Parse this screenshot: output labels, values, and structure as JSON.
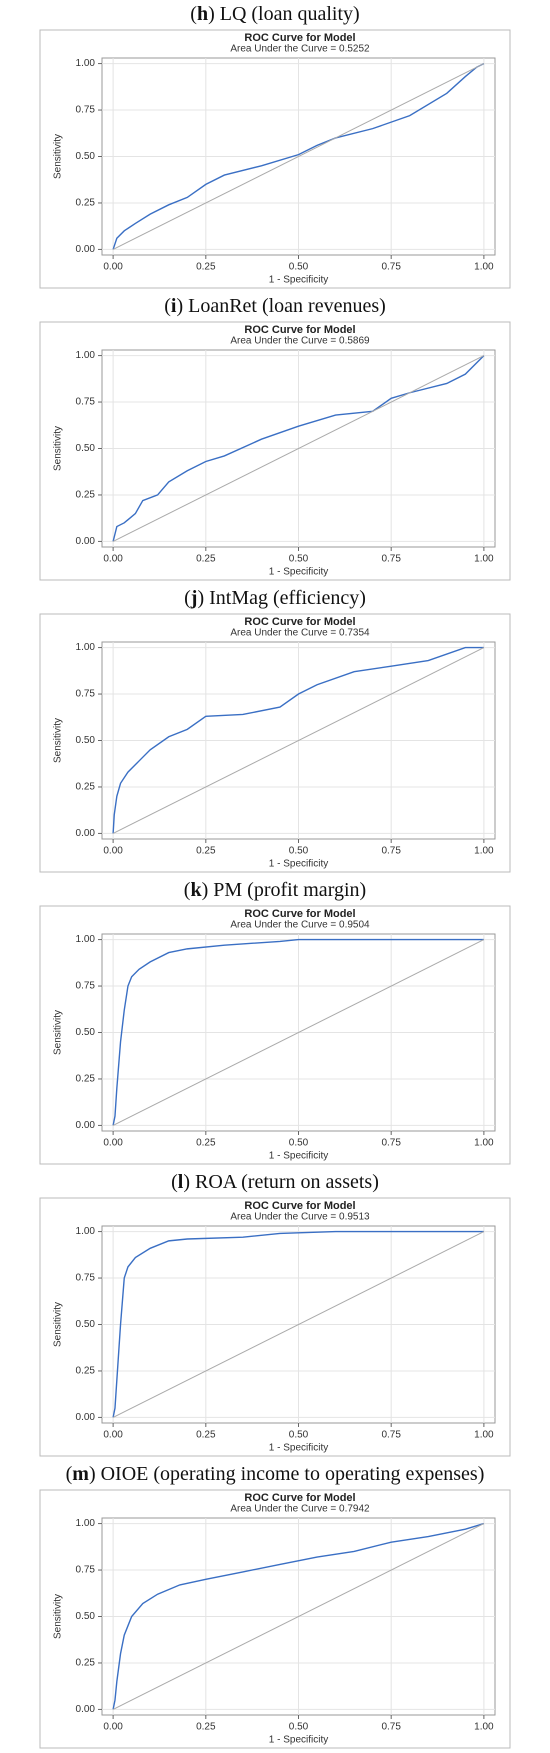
{
  "chart_data": [
    {
      "type": "line",
      "caption": [
        "(",
        "h",
        ") LQ (loan quality)"
      ],
      "title": "ROC Curve for Model",
      "subtitle": "Area Under the Curve = 0.5252",
      "xlabel": "1 - Specificity",
      "ylabel": "Sensitivity",
      "xlim": [
        -0.03,
        1.03
      ],
      "ylim": [
        -0.03,
        1.03
      ],
      "grid": true,
      "xticks": [
        {
          "value": 0,
          "label": "0.00"
        },
        {
          "value": 0.25,
          "label": "0.25"
        },
        {
          "value": 0.5,
          "label": "0.50"
        },
        {
          "value": 0.75,
          "label": "0.75"
        },
        {
          "value": 1,
          "label": "1.00"
        }
      ],
      "yticks": [
        {
          "value": 0,
          "label": "0.00"
        },
        {
          "value": 0.25,
          "label": "0.25"
        },
        {
          "value": 0.5,
          "label": "0.50"
        },
        {
          "value": 0.75,
          "label": "0.75"
        },
        {
          "value": 1,
          "label": "1.00"
        }
      ],
      "series": [
        {
          "color": "#3a6fc4",
          "x": [
            0,
            0.01,
            0.03,
            0.06,
            0.1,
            0.15,
            0.2,
            0.25,
            0.3,
            0.4,
            0.5,
            0.55,
            0.6,
            0.7,
            0.8,
            0.9,
            0.95,
            0.98,
            1
          ],
          "values": [
            0,
            0.06,
            0.1,
            0.14,
            0.19,
            0.24,
            0.28,
            0.35,
            0.4,
            0.45,
            0.51,
            0.56,
            0.6,
            0.65,
            0.72,
            0.84,
            0.93,
            0.98,
            1
          ]
        },
        {
          "color": "#aaaaaa",
          "x": [
            0,
            1
          ],
          "values": [
            0,
            1
          ]
        }
      ]
    },
    {
      "type": "line",
      "caption": [
        "(",
        "i",
        ") LoanRet (loan revenues)"
      ],
      "title": "ROC Curve for Model",
      "subtitle": "Area Under the Curve = 0.5869",
      "xlabel": "1 - Specificity",
      "ylabel": "Sensitivity",
      "xlim": [
        -0.03,
        1.03
      ],
      "ylim": [
        -0.03,
        1.03
      ],
      "grid": true,
      "xticks": [
        {
          "value": 0,
          "label": "0.00"
        },
        {
          "value": 0.25,
          "label": "0.25"
        },
        {
          "value": 0.5,
          "label": "0.50"
        },
        {
          "value": 0.75,
          "label": "0.75"
        },
        {
          "value": 1,
          "label": "1.00"
        }
      ],
      "yticks": [
        {
          "value": 0,
          "label": "0.00"
        },
        {
          "value": 0.25,
          "label": "0.25"
        },
        {
          "value": 0.5,
          "label": "0.50"
        },
        {
          "value": 0.75,
          "label": "0.75"
        },
        {
          "value": 1,
          "label": "1.00"
        }
      ],
      "series": [
        {
          "color": "#3a6fc4",
          "x": [
            0,
            0.01,
            0.03,
            0.06,
            0.08,
            0.12,
            0.15,
            0.2,
            0.25,
            0.3,
            0.4,
            0.5,
            0.6,
            0.7,
            0.75,
            0.8,
            0.9,
            0.95,
            1
          ],
          "values": [
            0,
            0.08,
            0.1,
            0.15,
            0.22,
            0.25,
            0.32,
            0.38,
            0.43,
            0.46,
            0.55,
            0.62,
            0.68,
            0.7,
            0.77,
            0.8,
            0.85,
            0.9,
            1
          ]
        },
        {
          "color": "#aaaaaa",
          "x": [
            0,
            1
          ],
          "values": [
            0,
            1
          ]
        }
      ]
    },
    {
      "type": "line",
      "caption": [
        "(",
        "j",
        ") IntMag (efficiency)"
      ],
      "title": "ROC Curve for Model",
      "subtitle": "Area Under the Curve = 0.7354",
      "xlabel": "1 - Specificity",
      "ylabel": "Sensitivity",
      "xlim": [
        -0.03,
        1.03
      ],
      "ylim": [
        -0.03,
        1.03
      ],
      "grid": true,
      "xticks": [
        {
          "value": 0,
          "label": "0.00"
        },
        {
          "value": 0.25,
          "label": "0.25"
        },
        {
          "value": 0.5,
          "label": "0.50"
        },
        {
          "value": 0.75,
          "label": "0.75"
        },
        {
          "value": 1,
          "label": "1.00"
        }
      ],
      "yticks": [
        {
          "value": 0,
          "label": "0.00"
        },
        {
          "value": 0.25,
          "label": "0.25"
        },
        {
          "value": 0.5,
          "label": "0.50"
        },
        {
          "value": 0.75,
          "label": "0.75"
        },
        {
          "value": 1,
          "label": "1.00"
        }
      ],
      "series": [
        {
          "color": "#3a6fc4",
          "x": [
            0,
            0.003,
            0.01,
            0.02,
            0.04,
            0.07,
            0.1,
            0.15,
            0.2,
            0.25,
            0.35,
            0.45,
            0.5,
            0.55,
            0.65,
            0.75,
            0.85,
            0.95,
            1
          ],
          "values": [
            0,
            0.1,
            0.2,
            0.27,
            0.33,
            0.39,
            0.45,
            0.52,
            0.56,
            0.63,
            0.64,
            0.68,
            0.75,
            0.8,
            0.87,
            0.9,
            0.93,
            1,
            1
          ]
        },
        {
          "color": "#aaaaaa",
          "x": [
            0,
            1
          ],
          "values": [
            0,
            1
          ]
        }
      ]
    },
    {
      "type": "line",
      "caption": [
        "(",
        "k",
        ") PM (profit margin)"
      ],
      "title": "ROC Curve for Model",
      "subtitle": "Area Under the Curve = 0.9504",
      "xlabel": "1 - Specificity",
      "ylabel": "Sensitivity",
      "xlim": [
        -0.03,
        1.03
      ],
      "ylim": [
        -0.03,
        1.03
      ],
      "grid": true,
      "xticks": [
        {
          "value": 0,
          "label": "0.00"
        },
        {
          "value": 0.25,
          "label": "0.25"
        },
        {
          "value": 0.5,
          "label": "0.50"
        },
        {
          "value": 0.75,
          "label": "0.75"
        },
        {
          "value": 1,
          "label": "1.00"
        }
      ],
      "yticks": [
        {
          "value": 0,
          "label": "0.00"
        },
        {
          "value": 0.25,
          "label": "0.25"
        },
        {
          "value": 0.5,
          "label": "0.50"
        },
        {
          "value": 0.75,
          "label": "0.75"
        },
        {
          "value": 1,
          "label": "1.00"
        }
      ],
      "series": [
        {
          "color": "#3a6fc4",
          "x": [
            0,
            0.005,
            0.01,
            0.02,
            0.03,
            0.04,
            0.05,
            0.07,
            0.1,
            0.15,
            0.2,
            0.3,
            0.45,
            0.5,
            1
          ],
          "values": [
            0,
            0.05,
            0.2,
            0.45,
            0.62,
            0.75,
            0.8,
            0.84,
            0.88,
            0.93,
            0.95,
            0.97,
            0.99,
            1,
            1
          ]
        },
        {
          "color": "#aaaaaa",
          "x": [
            0,
            1
          ],
          "values": [
            0,
            1
          ]
        }
      ]
    },
    {
      "type": "line",
      "caption": [
        "(",
        "l",
        ") ROA (return on assets)"
      ],
      "title": "ROC Curve for Model",
      "subtitle": "Area Under the Curve = 0.9513",
      "xlabel": "1 - Specificity",
      "ylabel": "Sensitivity",
      "xlim": [
        -0.03,
        1.03
      ],
      "ylim": [
        -0.03,
        1.03
      ],
      "grid": true,
      "xticks": [
        {
          "value": 0,
          "label": "0.00"
        },
        {
          "value": 0.25,
          "label": "0.25"
        },
        {
          "value": 0.5,
          "label": "0.50"
        },
        {
          "value": 0.75,
          "label": "0.75"
        },
        {
          "value": 1,
          "label": "1.00"
        }
      ],
      "yticks": [
        {
          "value": 0,
          "label": "0.00"
        },
        {
          "value": 0.25,
          "label": "0.25"
        },
        {
          "value": 0.5,
          "label": "0.50"
        },
        {
          "value": 0.75,
          "label": "0.75"
        },
        {
          "value": 1,
          "label": "1.00"
        }
      ],
      "series": [
        {
          "color": "#3a6fc4",
          "x": [
            0,
            0.005,
            0.01,
            0.02,
            0.03,
            0.04,
            0.06,
            0.1,
            0.15,
            0.2,
            0.35,
            0.45,
            0.6,
            1
          ],
          "values": [
            0,
            0.05,
            0.2,
            0.5,
            0.75,
            0.81,
            0.86,
            0.91,
            0.95,
            0.96,
            0.97,
            0.99,
            1,
            1
          ]
        },
        {
          "color": "#aaaaaa",
          "x": [
            0,
            1
          ],
          "values": [
            0,
            1
          ]
        }
      ]
    },
    {
      "type": "line",
      "caption": [
        "(",
        "m",
        ") OIOE (operating income to operating expenses)"
      ],
      "title": "ROC Curve for Model",
      "subtitle": "Area Under the Curve = 0.7942",
      "xlabel": "1 - Specificity",
      "ylabel": "Sensitivity",
      "xlim": [
        -0.03,
        1.03
      ],
      "ylim": [
        -0.03,
        1.03
      ],
      "grid": true,
      "xticks": [
        {
          "value": 0,
          "label": "0.00"
        },
        {
          "value": 0.25,
          "label": "0.25"
        },
        {
          "value": 0.5,
          "label": "0.50"
        },
        {
          "value": 0.75,
          "label": "0.75"
        },
        {
          "value": 1,
          "label": "1.00"
        }
      ],
      "yticks": [
        {
          "value": 0,
          "label": "0.00"
        },
        {
          "value": 0.25,
          "label": "0.25"
        },
        {
          "value": 0.5,
          "label": "0.50"
        },
        {
          "value": 0.75,
          "label": "0.75"
        },
        {
          "value": 1,
          "label": "1.00"
        }
      ],
      "series": [
        {
          "color": "#3a6fc4",
          "x": [
            0,
            0.005,
            0.01,
            0.02,
            0.03,
            0.05,
            0.08,
            0.12,
            0.18,
            0.25,
            0.35,
            0.45,
            0.55,
            0.65,
            0.75,
            0.85,
            0.95,
            1
          ],
          "values": [
            0,
            0.05,
            0.15,
            0.3,
            0.4,
            0.5,
            0.57,
            0.62,
            0.67,
            0.7,
            0.74,
            0.78,
            0.82,
            0.85,
            0.9,
            0.93,
            0.97,
            1
          ]
        },
        {
          "color": "#aaaaaa",
          "x": [
            0,
            1
          ],
          "values": [
            0,
            1
          ]
        }
      ]
    }
  ]
}
